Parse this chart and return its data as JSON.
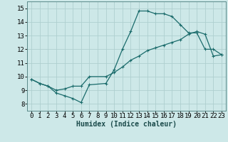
{
  "xlabel": "Humidex (Indice chaleur)",
  "background_color": "#cde8e8",
  "grid_color": "#aecfcf",
  "line_color": "#1a6b6b",
  "xlim": [
    -0.5,
    23.5
  ],
  "ylim": [
    7.5,
    15.5
  ],
  "xticks": [
    0,
    1,
    2,
    3,
    4,
    5,
    6,
    7,
    8,
    9,
    10,
    11,
    12,
    13,
    14,
    15,
    16,
    17,
    18,
    19,
    20,
    21,
    22,
    23
  ],
  "yticks": [
    8,
    9,
    10,
    11,
    12,
    13,
    14,
    15
  ],
  "line1_x": [
    0,
    1,
    2,
    3,
    4,
    5,
    6,
    7,
    9,
    10,
    11,
    12,
    13,
    14,
    15,
    16,
    17,
    18,
    19,
    20,
    21,
    22,
    23
  ],
  "line1_y": [
    9.8,
    9.5,
    9.3,
    8.8,
    8.6,
    8.4,
    8.1,
    9.4,
    9.5,
    10.5,
    12.0,
    13.3,
    14.8,
    14.8,
    14.6,
    14.6,
    14.4,
    13.8,
    13.2,
    13.2,
    12.0,
    12.0,
    11.6
  ],
  "line2_x": [
    0,
    1,
    2,
    3,
    4,
    5,
    6,
    7,
    9,
    10,
    11,
    12,
    13,
    14,
    15,
    16,
    17,
    18,
    19,
    20,
    21,
    22,
    23
  ],
  "line2_y": [
    9.8,
    9.5,
    9.3,
    9.0,
    9.1,
    9.3,
    9.3,
    10.0,
    10.0,
    10.3,
    10.7,
    11.2,
    11.5,
    11.9,
    12.1,
    12.3,
    12.5,
    12.7,
    13.1,
    13.3,
    13.1,
    11.5,
    11.6
  ],
  "xlabel_fontsize": 7,
  "tick_fontsize": 6.5,
  "marker_size": 3,
  "linewidth": 0.9
}
